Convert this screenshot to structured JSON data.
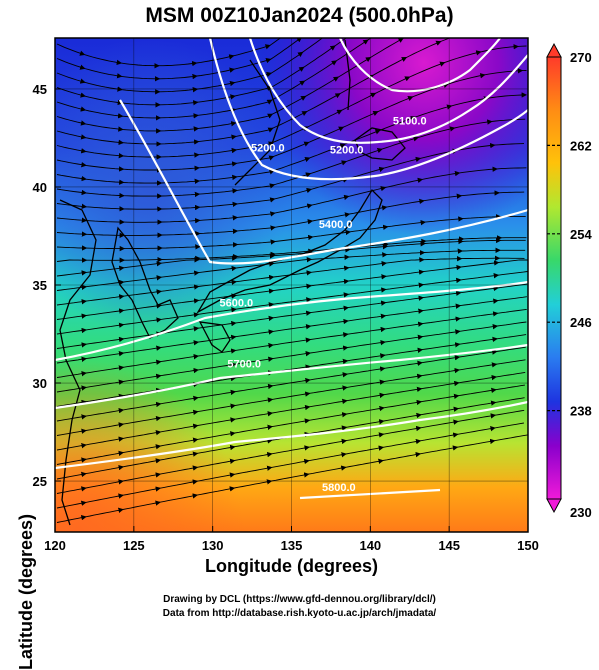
{
  "title": "MSM 00Z10Jan2024 (500.0hPa)",
  "xlabel": "Longitude (degrees)",
  "ylabel": "Latitude  (degrees)",
  "credit_line1": "Drawing by DCL (https://www.gfd-dennou.org/library/dcl/)",
  "credit_line2": "Data from http://database.rish.kyoto-u.ac.jp/arch/jmadata/",
  "map": {
    "lon_range": [
      120,
      150
    ],
    "lat_range": [
      22.4,
      47.6
    ],
    "lon_ticks": [
      "120",
      "125",
      "130",
      "135",
      "140",
      "145",
      "150"
    ],
    "lat_ticks": [
      "25",
      "30",
      "35",
      "40",
      "45"
    ],
    "contours": [
      {
        "label": "5100.0",
        "lon": 142.5,
        "lat": 43.2
      },
      {
        "label": "5200.0",
        "lon": 133.5,
        "lat": 41.8
      },
      {
        "label": "5200.0",
        "lon": 138.5,
        "lat": 41.7
      },
      {
        "label": "5400.0",
        "lon": 137.8,
        "lat": 37.9
      },
      {
        "label": "5600.0",
        "lon": 131.5,
        "lat": 33.9
      },
      {
        "label": "5700.0",
        "lon": 132.0,
        "lat": 30.8
      },
      {
        "label": "5800.0",
        "lon": 138.0,
        "lat": 24.5
      }
    ]
  },
  "colorbar": {
    "max_label": "270",
    "min_label": "230",
    "ticks": [
      "262",
      "254",
      "246",
      "238"
    ],
    "colors": [
      "#ff3b2a",
      "#ff6a1a",
      "#ff9a10",
      "#ffc20a",
      "#f0e020",
      "#b6e830",
      "#5edc48",
      "#2ed29a",
      "#22c8dc",
      "#2a8ef0",
      "#1e3ee6",
      "#4a10d0",
      "#9a00cc",
      "#e61ad8"
    ]
  }
}
